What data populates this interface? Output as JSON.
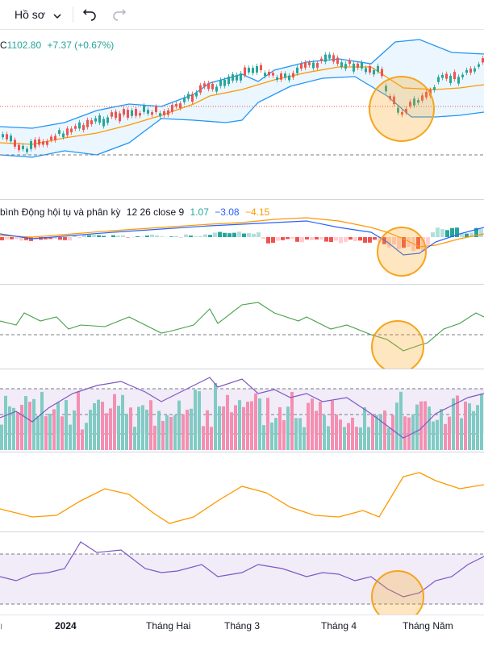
{
  "toolbar": {
    "profile_label": "Hồ sơ",
    "undo_icon": "undo-icon",
    "redo_icon": "redo-icon"
  },
  "price_legend": {
    "symbol_tail": "C",
    "price": "1102.80",
    "change": "+7.37 (+0.67%)"
  },
  "macd_legend": {
    "name": "bình Động hội tụ và phân kỳ",
    "params": "12 26 close 9",
    "hist_value": "1.07",
    "macd_value": "−3.08",
    "signal_value": "−4.15"
  },
  "x_axis": {
    "labels": [
      "2024",
      "Tháng Hai",
      "Tháng 3",
      "Tháng 4",
      "Tháng Năm"
    ],
    "partial_left": "ı"
  },
  "colors": {
    "up": "#26a69a",
    "down": "#ef5350",
    "bb_band": "#2196f3",
    "bb_fill": "#e3f2fd",
    "ma": "#ff9800",
    "macd_line": "#2962ff",
    "signal_line": "#ff9800",
    "green_line": "#43a047",
    "purple_line": "#7e57c2",
    "purple_fill": "#ede7f6",
    "highlight_circle": "#f7a41d"
  }
}
